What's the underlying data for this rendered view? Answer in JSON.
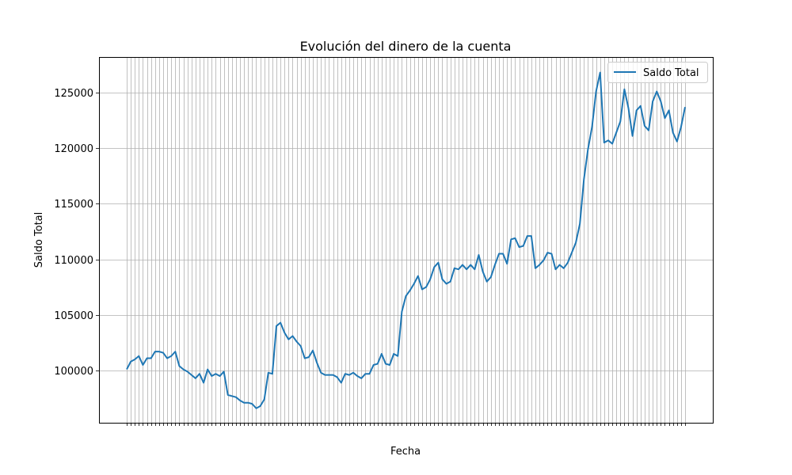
{
  "chart_data": {
    "type": "line",
    "title": "Evolución del dinero de la cuenta",
    "xlabel": "Fecha",
    "ylabel": "Saldo Total",
    "ylim": [
      95300,
      128200
    ],
    "yticks": [
      100000,
      105000,
      110000,
      115000,
      120000,
      125000
    ],
    "grid": true,
    "legend_position": "top-right",
    "series": [
      {
        "name": "Saldo Total",
        "color": "#1f77b4",
        "values": [
          100100,
          100800,
          101000,
          101300,
          100500,
          101100,
          101100,
          101700,
          101700,
          101600,
          101100,
          101300,
          101700,
          100400,
          100100,
          99900,
          99600,
          99300,
          99700,
          98900,
          100100,
          99500,
          99700,
          99500,
          99900,
          97800,
          97700,
          97600,
          97300,
          97100,
          97100,
          97000,
          96600,
          96800,
          97400,
          99800,
          99700,
          104000,
          104300,
          103400,
          102800,
          103100,
          102600,
          102200,
          101100,
          101200,
          101800,
          100700,
          99800,
          99600,
          99600,
          99600,
          99400,
          98900,
          99700,
          99600,
          99800,
          99500,
          99300,
          99700,
          99700,
          100500,
          100600,
          101500,
          100600,
          100500,
          101500,
          101300,
          105300,
          106700,
          107200,
          107800,
          108500,
          107300,
          107500,
          108200,
          109300,
          109700,
          108200,
          107800,
          108000,
          109200,
          109100,
          109500,
          109100,
          109500,
          109100,
          110400,
          108900,
          108000,
          108400,
          109500,
          110500,
          110500,
          109600,
          111800,
          111900,
          111100,
          111200,
          112100,
          112100,
          109200,
          109500,
          109900,
          110600,
          110500,
          109100,
          109500,
          109200,
          109700,
          110600,
          111500,
          113200,
          117200,
          119900,
          121900,
          125100,
          126800,
          120500,
          120700,
          120400,
          121400,
          122400,
          125300,
          123600,
          121100,
          123400,
          123800,
          122000,
          121600,
          124200,
          125100,
          124200,
          122700,
          123400,
          121400,
          120600,
          121900,
          123700
        ]
      }
    ]
  }
}
